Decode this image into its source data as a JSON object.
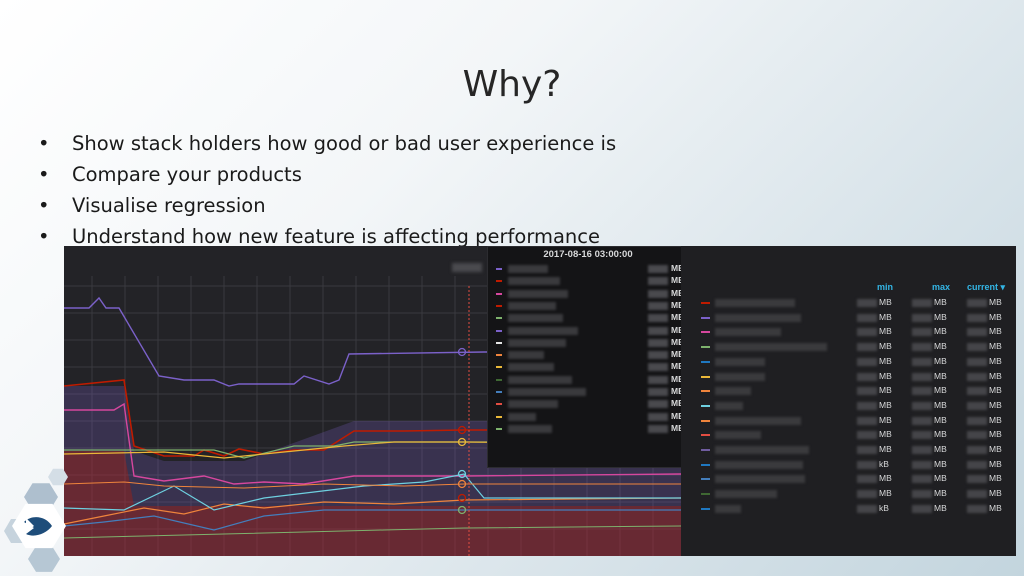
{
  "slide": {
    "title": "Why?",
    "bullets": [
      "Show stack holders how good or bad user experience is",
      "Compare your products",
      "Visualise regression",
      "Understand how new feature is affecting performance"
    ],
    "bullet_glyph": "•"
  },
  "dashboard": {
    "tooltip": {
      "timestamp": "2017-08-16 03:00:00",
      "rows": [
        {
          "color": "#7b61c9",
          "unit": "MB"
        },
        {
          "color": "#bf1b00",
          "unit": "MB"
        },
        {
          "color": "#d6479e",
          "unit": "MB"
        },
        {
          "color": "#bf1b00",
          "unit": "MB"
        },
        {
          "color": "#7eb26d",
          "unit": "MB"
        },
        {
          "color": "#7b61c9",
          "unit": "MB"
        },
        {
          "color": "#e5e5e5",
          "unit": "MB"
        },
        {
          "color": "#ef843c",
          "unit": "MB"
        },
        {
          "color": "#eab839",
          "unit": "MB"
        },
        {
          "color": "#3f6833",
          "unit": "MB"
        },
        {
          "color": "#447ebc",
          "unit": "MB"
        },
        {
          "color": "#e24d42",
          "unit": "MB"
        },
        {
          "color": "#eab839",
          "unit": "MB"
        },
        {
          "color": "#7eb26d",
          "unit": "MB"
        }
      ]
    },
    "legend": {
      "headers": {
        "min": "min",
        "max": "max",
        "current": "current ▾"
      },
      "rows": [
        {
          "color": "#bf1b00",
          "min_unit": "MB",
          "max_unit": "MB",
          "current_unit": "MB"
        },
        {
          "color": "#7b61c9",
          "min_unit": "MB",
          "max_unit": "MB",
          "current_unit": "MB"
        },
        {
          "color": "#d6479e",
          "min_unit": "MB",
          "max_unit": "MB",
          "current_unit": "MB"
        },
        {
          "color": "#7eb26d",
          "min_unit": "MB",
          "max_unit": "MB",
          "current_unit": "MB"
        },
        {
          "color": "#1f78c1",
          "min_unit": "MB",
          "max_unit": "MB",
          "current_unit": "MB"
        },
        {
          "color": "#eab839",
          "min_unit": "MB",
          "max_unit": "MB",
          "current_unit": "MB"
        },
        {
          "color": "#ef843c",
          "min_unit": "MB",
          "max_unit": "MB",
          "current_unit": "MB"
        },
        {
          "color": "#6ed0e0",
          "min_unit": "MB",
          "max_unit": "MB",
          "current_unit": "MB"
        },
        {
          "color": "#ef843c",
          "min_unit": "MB",
          "max_unit": "MB",
          "current_unit": "MB"
        },
        {
          "color": "#e24d42",
          "min_unit": "MB",
          "max_unit": "MB",
          "current_unit": "MB"
        },
        {
          "color": "#705da0",
          "min_unit": "MB",
          "max_unit": "MB",
          "current_unit": "MB"
        },
        {
          "color": "#1f78c1",
          "min_unit": "kB",
          "max_unit": "MB",
          "current_unit": "MB"
        },
        {
          "color": "#447ebc",
          "min_unit": "MB",
          "max_unit": "MB",
          "current_unit": "MB"
        },
        {
          "color": "#3f6833",
          "min_unit": "MB",
          "max_unit": "MB",
          "current_unit": "MB"
        },
        {
          "color": "#1f78c1",
          "min_unit": "kB",
          "max_unit": "MB",
          "current_unit": "MB"
        }
      ]
    },
    "series_colors": {
      "purple": "#7b61c9",
      "red": "#bf1b00",
      "pink": "#d6479e",
      "green": "#7eb26d",
      "yellow": "#eab839",
      "orange": "#ef843c",
      "cyan": "#6ed0e0",
      "blue": "#447ebc",
      "cursor": "#e24d42"
    }
  },
  "logo": {
    "icon": "hexagon-logo-icon",
    "color": "#1e4d7a"
  }
}
